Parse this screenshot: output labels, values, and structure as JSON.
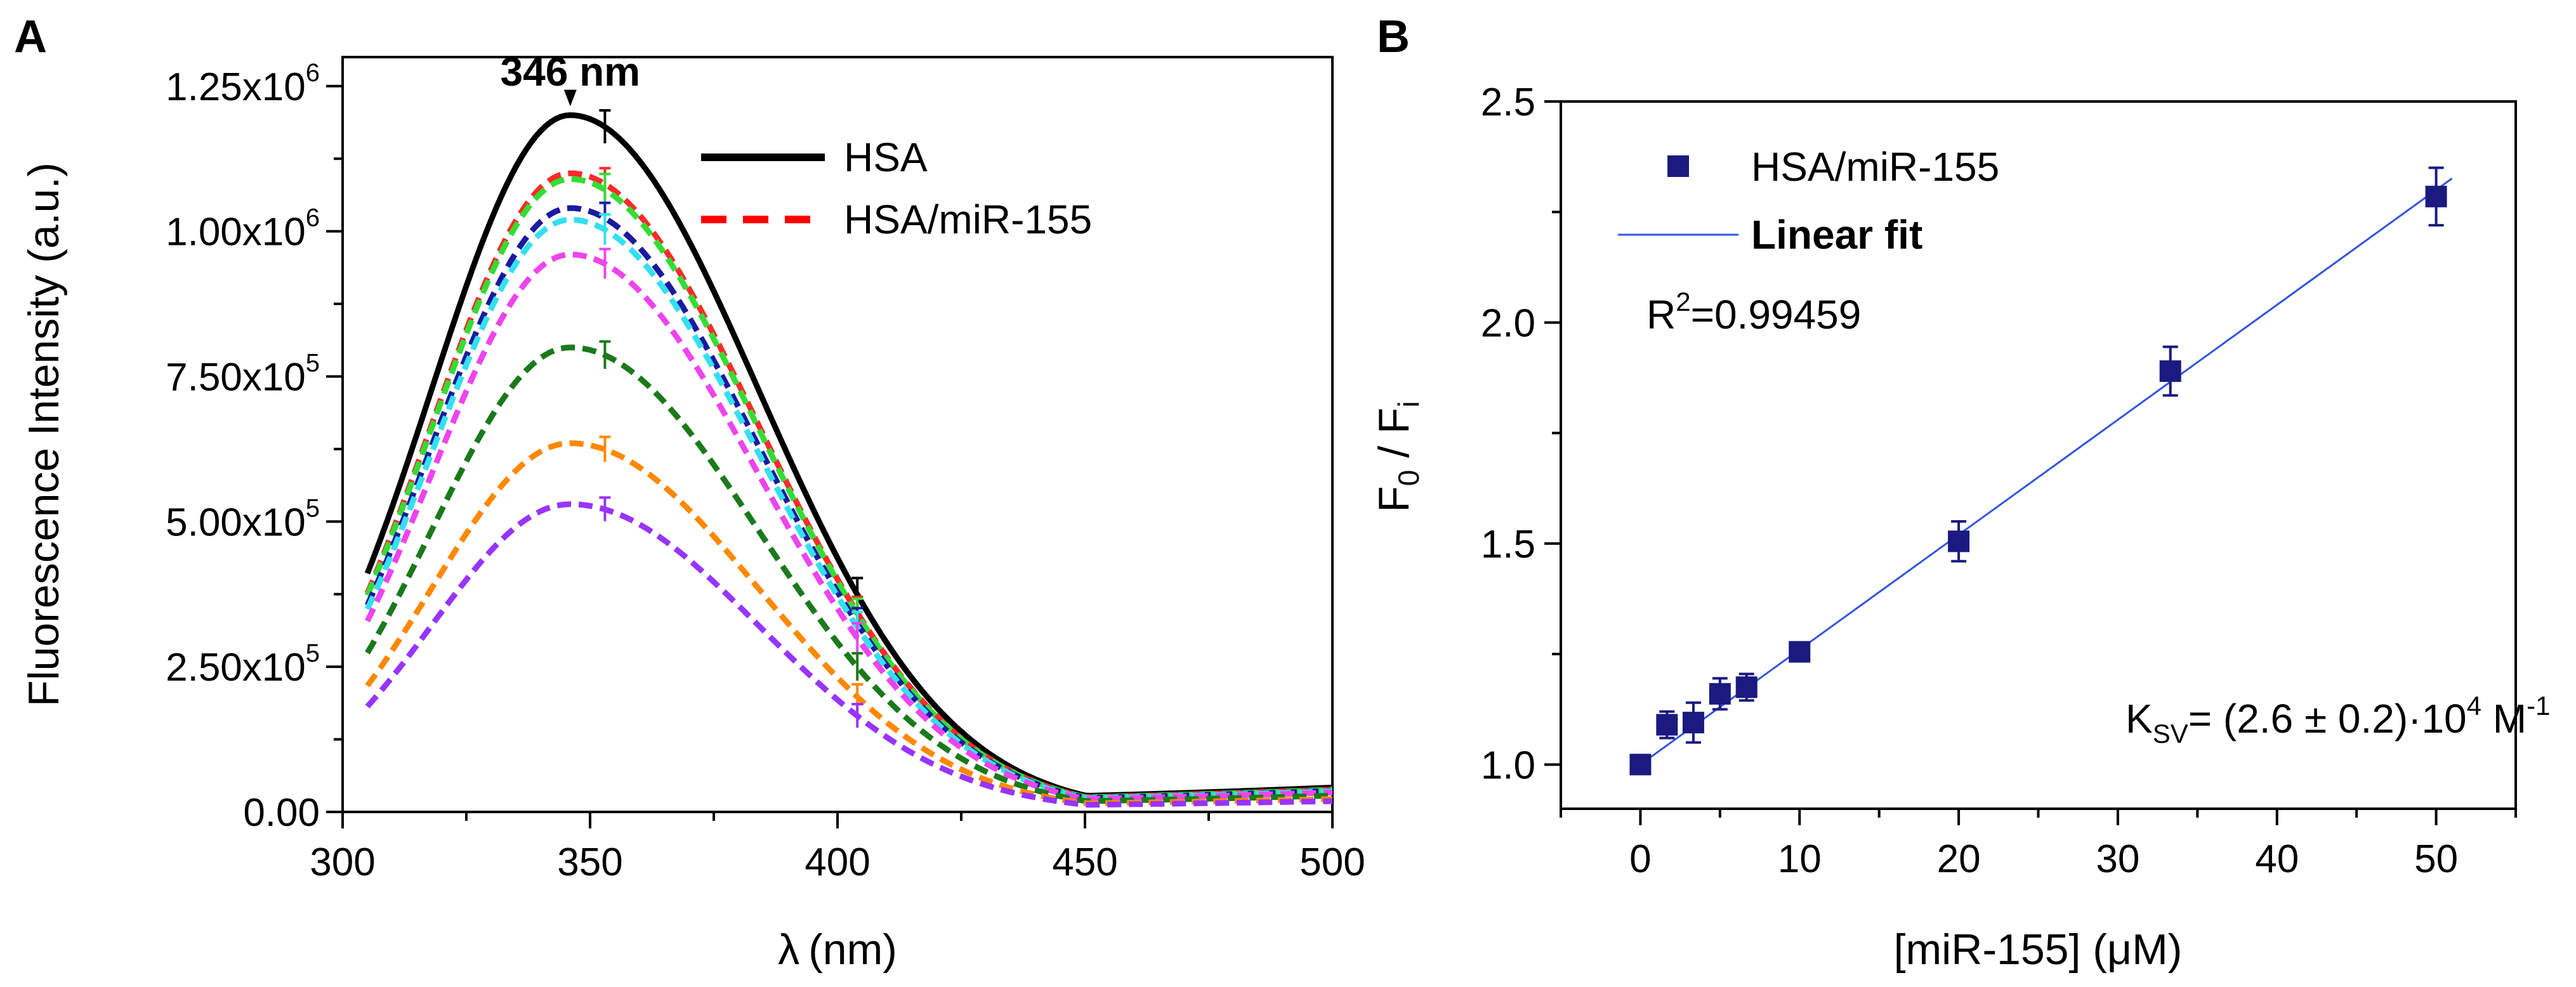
{
  "chart_data": [
    {
      "panel": "A",
      "type": "line",
      "xlabel_symbol": "λ",
      "xlabel_unit": "(nm)",
      "ylabel": "Fluorescence Intensity (a.u.)",
      "xlim": [
        300,
        500
      ],
      "ylim": [
        0,
        1300000
      ],
      "x_ticks": [
        300,
        350,
        400,
        450,
        500
      ],
      "y_ticks": [
        {
          "value": 0,
          "mant": "0.00",
          "exp": ""
        },
        {
          "value": 250000,
          "mant": "2.50x10",
          "exp": "5"
        },
        {
          "value": 500000,
          "mant": "5.00x10",
          "exp": "5"
        },
        {
          "value": 750000,
          "mant": "7.50x10",
          "exp": "5"
        },
        {
          "value": 1000000,
          "mant": "1.00x10",
          "exp": "6"
        },
        {
          "value": 1250000,
          "mant": "1.25x10",
          "exp": "6"
        }
      ],
      "annotation": {
        "text": "346 nm",
        "x": 346
      },
      "legend": [
        {
          "label": "HSA",
          "style": "solid",
          "color": "#000000"
        },
        {
          "label": "HSA/miR-155",
          "style": "dashed",
          "color": "#ff0000"
        }
      ],
      "series": [
        {
          "peak": 1200000,
          "color": "#000000",
          "style": "solid"
        },
        {
          "peak": 1100000,
          "color": "#ff2a2a",
          "style": "dashed"
        },
        {
          "peak": 1090000,
          "color": "#33dd33",
          "style": "dashed"
        },
        {
          "peak": 1040000,
          "color": "#1a1aa0",
          "style": "dashed"
        },
        {
          "peak": 1020000,
          "color": "#33e0f0",
          "style": "dashed"
        },
        {
          "peak": 960000,
          "color": "#ee44ee",
          "style": "dashed"
        },
        {
          "peak": 800000,
          "color": "#1a7a1a",
          "style": "dashed"
        },
        {
          "peak": 635000,
          "color": "#ff8800",
          "style": "dashed"
        },
        {
          "peak": 530000,
          "color": "#9933ff",
          "style": "dashed"
        }
      ],
      "curve_shape": {
        "x_start": 305,
        "peak_x": 346,
        "start_fraction": 0.17,
        "end_fraction": 0.035
      }
    },
    {
      "panel": "B",
      "type": "scatter",
      "xlabel": "[miR-155] (μM)",
      "ylabel_main": "F",
      "ylabel_sub0": "0",
      "ylabel_sep": " / F",
      "ylabel_subi": "i",
      "xlim": [
        -5,
        55
      ],
      "ylim": [
        0.9,
        2.5
      ],
      "x_ticks": [
        0,
        10,
        20,
        30,
        40,
        50
      ],
      "y_ticks": [
        1.0,
        1.5,
        2.0,
        2.5
      ],
      "legend": [
        {
          "label": "HSA/miR-155",
          "kind": "marker",
          "color": "#1a1a80"
        },
        {
          "label": "Linear fit",
          "kind": "line",
          "color": "#3355dd"
        }
      ],
      "r2_label": "R",
      "r2_exp": "2",
      "r2_value": "=0.99459",
      "ksv": {
        "k": "K",
        "sub": "SV",
        "mid": "= (2.6 ± 0.2)·10",
        "exp": "4",
        "unit": " M",
        "unit_exp": "-1"
      },
      "points": [
        {
          "x": 0,
          "y": 1.0,
          "err": 0.0
        },
        {
          "x": 1.67,
          "y": 1.09,
          "err": 0.03
        },
        {
          "x": 3.33,
          "y": 1.095,
          "err": 0.045
        },
        {
          "x": 5,
          "y": 1.16,
          "err": 0.035
        },
        {
          "x": 6.67,
          "y": 1.175,
          "err": 0.03
        },
        {
          "x": 10,
          "y": 1.255,
          "err": 0.02
        },
        {
          "x": 20,
          "y": 1.505,
          "err": 0.045
        },
        {
          "x": 33.3,
          "y": 1.89,
          "err": 0.055
        },
        {
          "x": 50,
          "y": 2.285,
          "err": 0.065
        }
      ],
      "fit": {
        "slope": 0.026,
        "intercept": 1.0
      }
    }
  ]
}
